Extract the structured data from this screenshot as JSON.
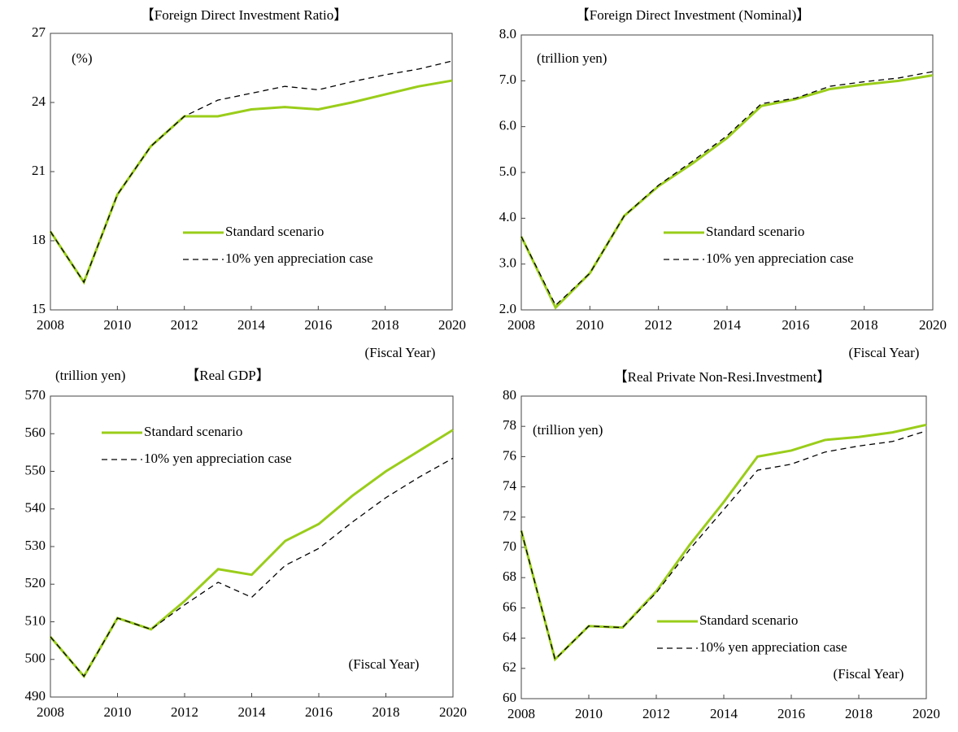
{
  "chart_data": [
    {
      "type": "line",
      "title": "【Foreign Direct Investment Ratio】",
      "unit_label": "(%)",
      "x_label": "(Fiscal Year)",
      "x": [
        2008,
        2009,
        2010,
        2011,
        2012,
        2013,
        2014,
        2015,
        2016,
        2017,
        2018,
        2019,
        2020
      ],
      "xlim": [
        2008,
        2020
      ],
      "xticks": [
        2008,
        2010,
        2012,
        2014,
        2016,
        2018,
        2020
      ],
      "ylim": [
        15,
        27
      ],
      "yticks": [
        15,
        18,
        21,
        24,
        27
      ],
      "legend": "lower right",
      "series": [
        {
          "name": "Standard scenario",
          "color": "#9acd1a",
          "style": "solid",
          "values": [
            18.4,
            16.2,
            20.0,
            22.1,
            23.4,
            23.4,
            23.7,
            23.8,
            23.7,
            24.0,
            24.35,
            24.7,
            24.95
          ]
        },
        {
          "name": "10% yen appreciation case",
          "color": "#000000",
          "style": "dashed",
          "values": [
            18.4,
            16.2,
            20.0,
            22.1,
            23.4,
            24.1,
            24.4,
            24.7,
            24.55,
            24.9,
            25.2,
            25.45,
            25.8
          ]
        }
      ]
    },
    {
      "type": "line",
      "title": "【Foreign Direct Investment (Nominal)】",
      "unit_label": "(trillion yen)",
      "x_label": "(Fiscal Year)",
      "x": [
        2008,
        2009,
        2010,
        2011,
        2012,
        2013,
        2014,
        2015,
        2016,
        2017,
        2018,
        2019,
        2020
      ],
      "xlim": [
        2008,
        2020
      ],
      "xticks": [
        2008,
        2010,
        2012,
        2014,
        2016,
        2018,
        2020
      ],
      "ylim": [
        2,
        8
      ],
      "yticks": [
        {
          "value": 2,
          "label": "2.0"
        },
        {
          "value": 3,
          "label": "3.0"
        },
        {
          "value": 4,
          "label": "4.0"
        },
        {
          "value": 5,
          "label": "5.0"
        },
        {
          "value": 6,
          "label": "6.0"
        },
        {
          "value": 7,
          "label": "7.0"
        },
        {
          "value": 8,
          "label": "8.0"
        }
      ],
      "legend": "lower right",
      "series": [
        {
          "name": "Standard scenario",
          "color": "#9acd1a",
          "style": "solid",
          "values": [
            3.6,
            2.05,
            2.8,
            4.05,
            4.7,
            5.2,
            5.75,
            6.45,
            6.6,
            6.82,
            6.92,
            7.0,
            7.12
          ]
        },
        {
          "name": "10% yen appreciation case",
          "color": "#000000",
          "style": "dashed",
          "values": [
            3.6,
            2.1,
            2.8,
            4.05,
            4.72,
            5.25,
            5.8,
            6.5,
            6.62,
            6.88,
            6.98,
            7.06,
            7.2
          ]
        }
      ]
    },
    {
      "type": "line",
      "title": "【Real GDP】",
      "unit_label": "(trillion yen)",
      "x_label": "(Fiscal Year)",
      "x": [
        2008,
        2009,
        2010,
        2011,
        2012,
        2013,
        2014,
        2015,
        2016,
        2017,
        2018,
        2019,
        2020
      ],
      "xlim": [
        2008,
        2020
      ],
      "xticks": [
        2008,
        2010,
        2012,
        2014,
        2016,
        2018,
        2020
      ],
      "ylim": [
        490,
        570
      ],
      "yticks": [
        490,
        500,
        510,
        520,
        530,
        540,
        550,
        560,
        570
      ],
      "legend": "upper left",
      "series": [
        {
          "name": "Standard scenario",
          "color": "#9acd1a",
          "style": "solid",
          "values": [
            506,
            495.5,
            511,
            508,
            515.5,
            524,
            522.5,
            531.5,
            536,
            543.5,
            550,
            555.5,
            561
          ]
        },
        {
          "name": "10% yen appreciation case",
          "color": "#000000",
          "style": "dashed",
          "values": [
            506,
            495.5,
            511,
            508,
            514.5,
            520.5,
            516.5,
            525,
            529.5,
            536.5,
            543,
            548.5,
            553.5
          ]
        }
      ]
    },
    {
      "type": "line",
      "title": "【Real Private Non-Resi.Investment】",
      "unit_label": "(trillion yen)",
      "x_label": "(Fiscal Year)",
      "x": [
        2008,
        2009,
        2010,
        2011,
        2012,
        2013,
        2014,
        2015,
        2016,
        2017,
        2018,
        2019,
        2020
      ],
      "xlim": [
        2008,
        2020
      ],
      "xticks": [
        2008,
        2010,
        2012,
        2014,
        2016,
        2018,
        2020
      ],
      "ylim": [
        60,
        80
      ],
      "yticks": [
        60,
        62,
        64,
        66,
        68,
        70,
        72,
        74,
        76,
        78,
        80
      ],
      "legend": "lower right",
      "series": [
        {
          "name": "Standard scenario",
          "color": "#9acd1a",
          "style": "solid",
          "values": [
            71.1,
            62.6,
            64.8,
            64.7,
            67.1,
            70.2,
            73.0,
            76.0,
            76.4,
            77.1,
            77.3,
            77.6,
            78.1
          ]
        },
        {
          "name": "10% yen appreciation case",
          "color": "#000000",
          "style": "dashed",
          "values": [
            71.1,
            62.6,
            64.8,
            64.7,
            67.0,
            69.9,
            72.5,
            75.1,
            75.5,
            76.3,
            76.7,
            77.0,
            77.7
          ]
        }
      ]
    }
  ]
}
